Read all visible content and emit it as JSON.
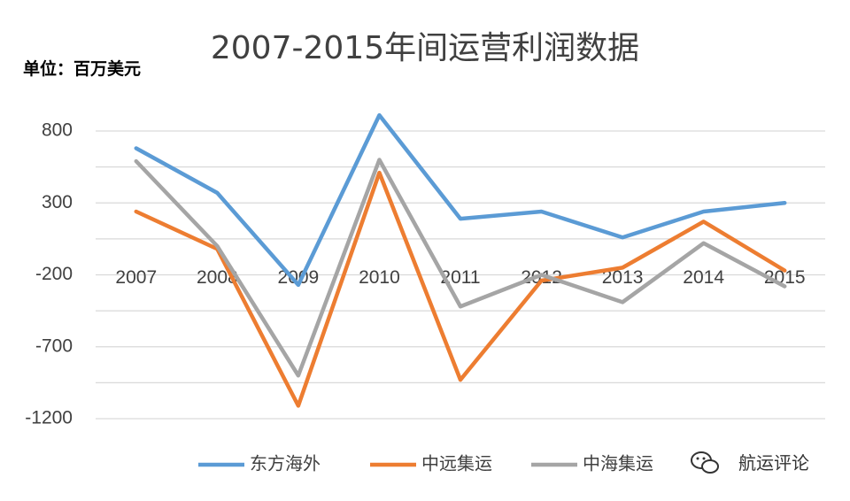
{
  "chart_data": {
    "type": "line",
    "title": "2007-2015年间运营利润数据",
    "unit_label": "单位：百万美元",
    "categories": [
      "2007",
      "2008",
      "2009",
      "2010",
      "2011",
      "2012",
      "2013",
      "2014",
      "2015"
    ],
    "y_ticks": [
      "800",
      "300",
      "-200",
      "-700",
      "-1200"
    ],
    "ylim": [
      -1200,
      800
    ],
    "series": [
      {
        "name": "东方海外",
        "color": "#5b9bd5",
        "values": [
          680,
          370,
          -270,
          910,
          190,
          240,
          60,
          240,
          300
        ]
      },
      {
        "name": "中远集运",
        "color": "#ed7d31",
        "values": [
          240,
          -20,
          -1110,
          510,
          -930,
          -240,
          -150,
          170,
          -170
        ]
      },
      {
        "name": "中海集运",
        "color": "#a5a5a5",
        "values": [
          590,
          0,
          -900,
          600,
          -420,
          -200,
          -390,
          20,
          -280
        ]
      }
    ],
    "grid": true,
    "legend_position": "bottom"
  },
  "watermark": {
    "text": "航运评论",
    "icon": "wechat-icon"
  }
}
